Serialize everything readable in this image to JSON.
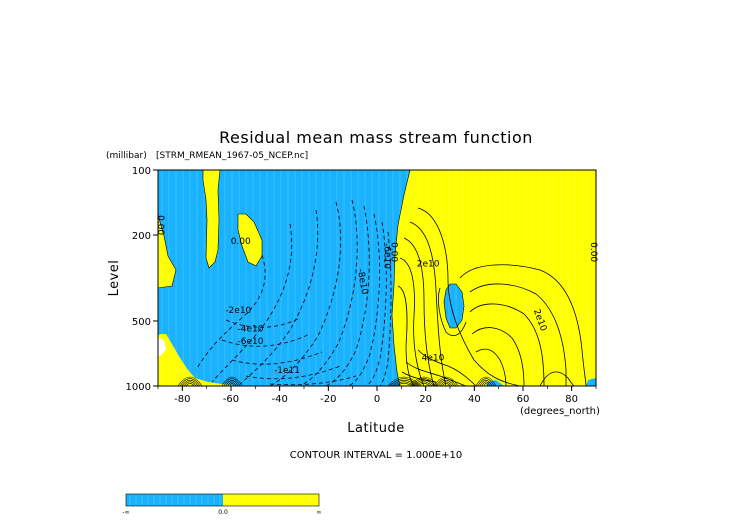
{
  "chart_data": {
    "type": "contour",
    "title": "Residual mean mass stream function",
    "source_file": "[STRM_RMEAN_1967-05_NCEP.nc]",
    "xlabel": "Latitude",
    "x_units": "(degrees_north)",
    "ylabel": "Level",
    "y_units": "(millibar)",
    "y_scale": "log",
    "y_inverted": true,
    "xlim": [
      -90,
      90
    ],
    "ylim": [
      1000,
      100
    ],
    "x_ticks": [
      -80,
      -60,
      -40,
      -20,
      0,
      20,
      40,
      60,
      80
    ],
    "y_ticks": [
      1000,
      500,
      200,
      100
    ],
    "contour_interval_text": "CONTOUR INTERVAL = 1.000E+10",
    "fill_colors": {
      "negative": "#19b2ff",
      "positive": "#ffff00"
    },
    "contour_labels": [
      {
        "text": "0.00",
        "lat": -90,
        "level": 180
      },
      {
        "text": "0.00",
        "lat": -56,
        "level": 220
      },
      {
        "text": "0.00",
        "lat": 6,
        "level": 240
      },
      {
        "text": "0.00",
        "lat": 88,
        "level": 240
      },
      {
        "text": "-2e10",
        "lat": -57,
        "level": 460
      },
      {
        "text": "-4e10",
        "lat": -52,
        "level": 560
      },
      {
        "text": "-6e10",
        "lat": -52,
        "level": 640
      },
      {
        "text": "-1e11",
        "lat": -37,
        "level": 870
      },
      {
        "text": "-8e10",
        "lat": -7,
        "level": 330
      },
      {
        "text": "-6e10",
        "lat": 3,
        "level": 250
      },
      {
        "text": "2e10",
        "lat": 21,
        "level": 280
      },
      {
        "text": "2e10",
        "lat": 66,
        "level": 500
      },
      {
        "text": "4e10",
        "lat": 23,
        "level": 760
      }
    ],
    "colorbar": {
      "labels": [
        "-∞",
        "0.0",
        "∞"
      ]
    }
  },
  "colors": {
    "negative_fill": "#19b2ff",
    "positive_fill": "#ffff00",
    "frame": "#000000"
  }
}
